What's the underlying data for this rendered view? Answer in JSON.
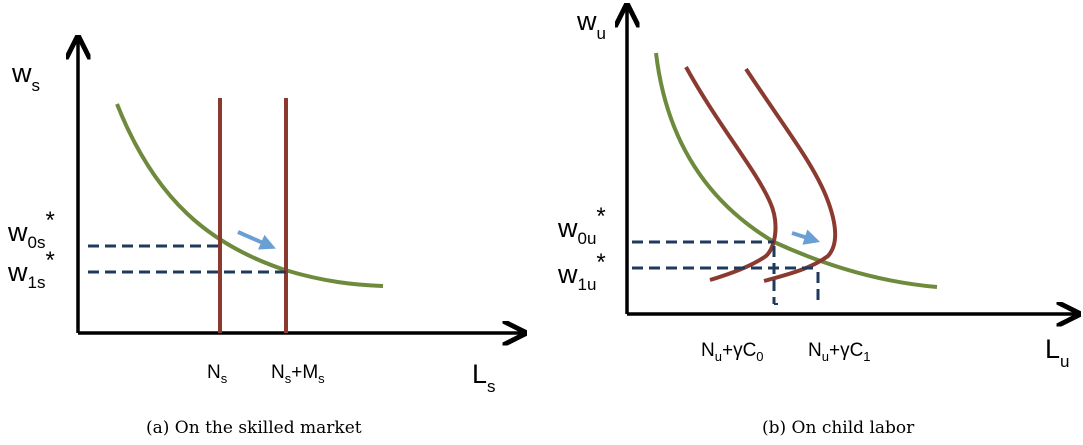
{
  "panel_a": {
    "y_axis": {
      "main": "w",
      "sub": "s"
    },
    "x_axis": {
      "main": "L",
      "sub": "s"
    },
    "wage_high": {
      "main": "w",
      "sub": "0s",
      "star": "*"
    },
    "wage_low": {
      "main": "w",
      "sub": "1s",
      "star": "*"
    },
    "supply_0": {
      "main": "N",
      "sub": "s"
    },
    "supply_1": {
      "main": "N",
      "sub1": "s",
      "plus": "+M",
      "sub2": "s"
    },
    "caption": "(a) On the skilled market"
  },
  "panel_b": {
    "y_axis": {
      "main": "w",
      "sub": "u"
    },
    "x_axis": {
      "main": "L",
      "sub": "u"
    },
    "wage_high": {
      "main": "w",
      "sub": "0u",
      "star": "*"
    },
    "wage_low": {
      "main": "w",
      "sub": "1u",
      "star": "*"
    },
    "supply_0": {
      "main": "N",
      "sub": "u",
      "rest": "+γC",
      "sub2": "0"
    },
    "supply_1": {
      "main": "N",
      "sub": "u",
      "rest": "+γC",
      "sub2": "1"
    },
    "caption": "(b) On child labor"
  },
  "colors": {
    "demand": "#6e8b3d",
    "supply": "#8b3a30",
    "dashed": "#1f3a5f",
    "arrow": "#6a9fd4",
    "axis": "#000000"
  }
}
